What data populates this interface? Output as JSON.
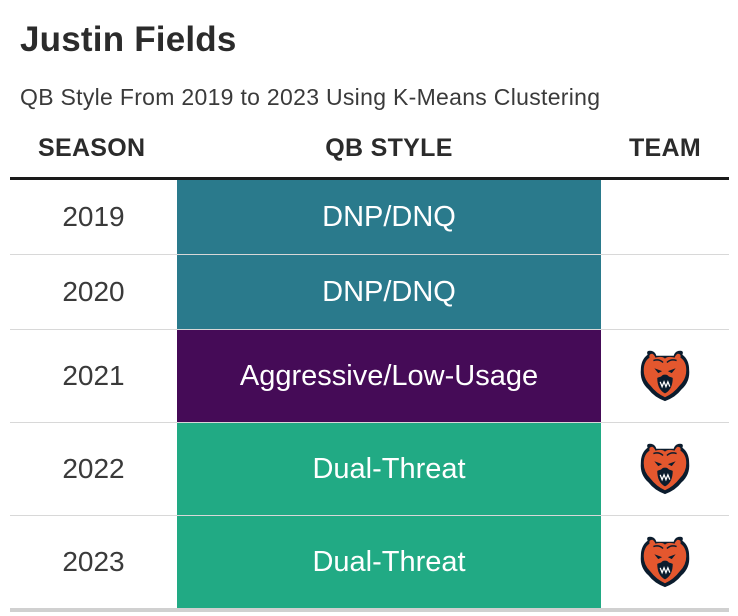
{
  "title": "Justin Fields",
  "subtitle": "QB Style From 2019 to 2023 Using K-Means Clustering",
  "columns": {
    "season": "SEASON",
    "style": "QB STYLE",
    "team": "TEAM"
  },
  "colors": {
    "DNP/DNQ": "#2a7a8c",
    "Aggressive/Low-Usage": "#450b57",
    "Dual-Threat": "#21aa84"
  },
  "chart_data": {
    "type": "table",
    "rows": [
      {
        "season": "2019",
        "qb_style": "DNP/DNQ",
        "team_logo": ""
      },
      {
        "season": "2020",
        "qb_style": "DNP/DNQ",
        "team_logo": ""
      },
      {
        "season": "2021",
        "qb_style": "Aggressive/Low-Usage",
        "team_logo": "bears-logo-icon"
      },
      {
        "season": "2022",
        "qb_style": "Dual-Threat",
        "team_logo": "bears-logo-icon"
      },
      {
        "season": "2023",
        "qb_style": "Dual-Threat",
        "team_logo": "bears-logo-icon"
      }
    ]
  }
}
